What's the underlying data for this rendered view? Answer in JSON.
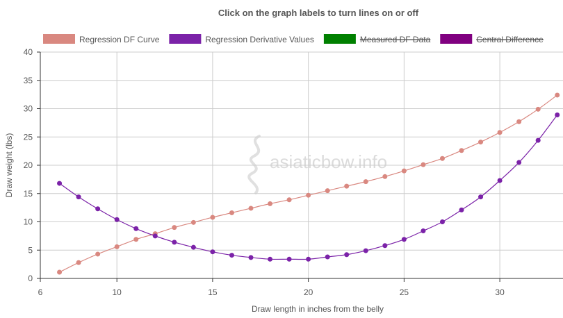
{
  "chart_data": {
    "type": "line",
    "title": "Click on the graph labels to turn lines on or off",
    "xlabel": "Draw length in inches from the belly",
    "ylabel": "Draw weight (lbs)",
    "xlim": [
      6,
      33.3
    ],
    "ylim": [
      0,
      40
    ],
    "xticks": [
      6,
      10,
      15,
      20,
      25,
      30
    ],
    "yticks": [
      0,
      5,
      10,
      15,
      20,
      25,
      30,
      35,
      40
    ],
    "grid": true,
    "legend_position": "top",
    "watermark": "asiaticbow.info",
    "series": [
      {
        "name": "Regression DF Curve",
        "color": "#d98880",
        "visible": true,
        "x": [
          7,
          8,
          9,
          10,
          11,
          12,
          13,
          14,
          15,
          16,
          17,
          18,
          19,
          20,
          21,
          22,
          23,
          24,
          25,
          26,
          27,
          28,
          29,
          30,
          31,
          32,
          33
        ],
        "values": [
          1.1,
          2.8,
          4.3,
          5.6,
          6.9,
          7.9,
          9.0,
          9.9,
          10.8,
          11.6,
          12.4,
          13.2,
          13.9,
          14.7,
          15.5,
          16.3,
          17.1,
          18.0,
          19.0,
          20.1,
          21.2,
          22.6,
          24.1,
          25.8,
          27.7,
          29.9,
          32.4
        ]
      },
      {
        "name": "Regression Derivative Values",
        "color": "#7b22a8",
        "visible": true,
        "x": [
          7,
          8,
          9,
          10,
          11,
          12,
          13,
          14,
          15,
          16,
          17,
          18,
          19,
          20,
          21,
          22,
          23,
          24,
          25,
          26,
          27,
          28,
          29,
          30,
          31,
          32,
          33
        ],
        "values": [
          16.8,
          14.4,
          12.3,
          10.4,
          8.8,
          7.5,
          6.4,
          5.5,
          4.7,
          4.1,
          3.7,
          3.4,
          3.4,
          3.4,
          3.8,
          4.2,
          4.9,
          5.8,
          6.9,
          8.4,
          10.0,
          12.1,
          14.4,
          17.3,
          20.5,
          24.4,
          28.9
        ]
      },
      {
        "name": "Measured DF Data",
        "color": "#008000",
        "visible": false,
        "x": [],
        "values": []
      },
      {
        "name": "Central Difference",
        "color": "#800080",
        "visible": false,
        "x": [],
        "values": []
      }
    ]
  }
}
